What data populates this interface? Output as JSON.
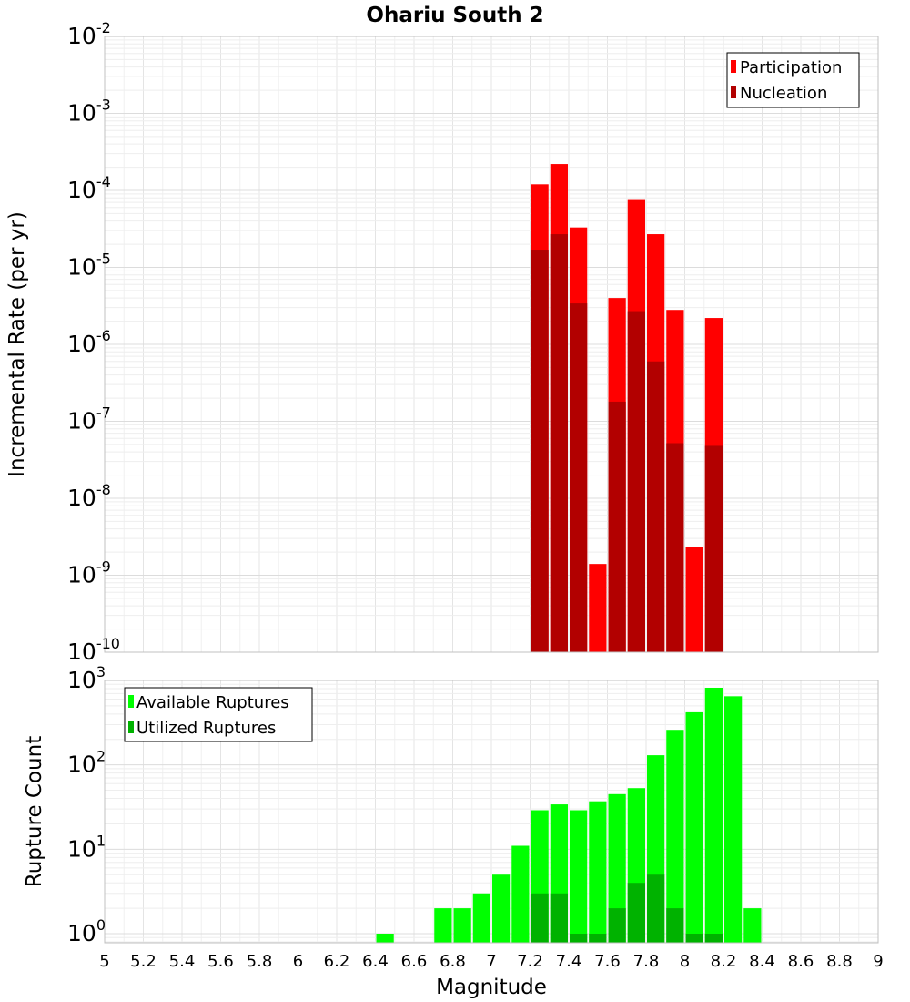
{
  "chart_data": [
    {
      "type": "bar",
      "title": "Ohariu South 2",
      "xlabel": "",
      "ylabel": "Incremental Rate (per yr)",
      "xlim": [
        5,
        9
      ],
      "ylim": [
        1e-10,
        0.01
      ],
      "yscale": "log",
      "yticks": [
        {
          "base": "10",
          "exp": "-2"
        },
        {
          "base": "10",
          "exp": "-3"
        },
        {
          "base": "10",
          "exp": "-4"
        },
        {
          "base": "10",
          "exp": "-5"
        },
        {
          "base": "10",
          "exp": "-6"
        },
        {
          "base": "10",
          "exp": "-7"
        },
        {
          "base": "10",
          "exp": "-8"
        },
        {
          "base": "10",
          "exp": "-9"
        },
        {
          "base": "10",
          "exp": "-10"
        }
      ],
      "bin_width": 0.1,
      "legend_position": "top-right",
      "grid": true,
      "series": [
        {
          "name": "Participation",
          "color": "#ff0000",
          "x": [
            7.25,
            7.35,
            7.45,
            7.55,
            7.65,
            7.75,
            7.85,
            7.95,
            8.05,
            8.15
          ],
          "values": [
            0.00012,
            0.00022,
            3.3e-05,
            1.4e-09,
            4e-06,
            7.5e-05,
            2.7e-05,
            2.8e-06,
            2.3e-09,
            2.2e-06
          ]
        },
        {
          "name": "Nucleation",
          "color": "#b20000",
          "x": [
            7.25,
            7.35,
            7.45,
            7.65,
            7.75,
            7.85,
            7.95,
            8.15
          ],
          "values": [
            1.7e-05,
            2.7e-05,
            3.4e-06,
            1.8e-07,
            2.7e-06,
            6e-07,
            5.2e-08,
            4.8e-08
          ]
        }
      ]
    },
    {
      "type": "bar",
      "title": "",
      "xlabel": "Magnitude",
      "ylabel": "Rupture Count",
      "xlim": [
        5,
        9
      ],
      "ylim": [
        0.78,
        1000
      ],
      "yscale": "log",
      "xticks": [
        "5",
        "5.2",
        "5.4",
        "5.6",
        "5.8",
        "6",
        "6.2",
        "6.4",
        "6.6",
        "6.8",
        "7",
        "7.2",
        "7.4",
        "7.6",
        "7.8",
        "8",
        "8.2",
        "8.4",
        "8.6",
        "8.8",
        "9"
      ],
      "yticks": [
        {
          "base": "10",
          "exp": "3"
        },
        {
          "base": "10",
          "exp": "2"
        },
        {
          "base": "10",
          "exp": "1"
        },
        {
          "base": "10",
          "exp": "0"
        }
      ],
      "bin_width": 0.1,
      "legend_position": "top-left",
      "grid": true,
      "series": [
        {
          "name": "Available Ruptures",
          "color": "#00ff00",
          "x": [
            6.45,
            6.75,
            6.85,
            6.95,
            7.05,
            7.15,
            7.25,
            7.35,
            7.45,
            7.55,
            7.65,
            7.75,
            7.85,
            7.95,
            8.05,
            8.15,
            8.25,
            8.35
          ],
          "values": [
            1,
            2,
            2,
            3,
            5,
            11,
            29,
            34,
            29,
            37,
            45,
            53,
            130,
            260,
            420,
            820,
            650,
            2
          ]
        },
        {
          "name": "Utilized Ruptures",
          "color": "#00b200",
          "x": [
            7.25,
            7.35,
            7.45,
            7.55,
            7.65,
            7.75,
            7.85,
            7.95,
            8.05,
            8.15
          ],
          "values": [
            3,
            3,
            1,
            1,
            2,
            4,
            5,
            2,
            1,
            1
          ]
        }
      ]
    }
  ]
}
